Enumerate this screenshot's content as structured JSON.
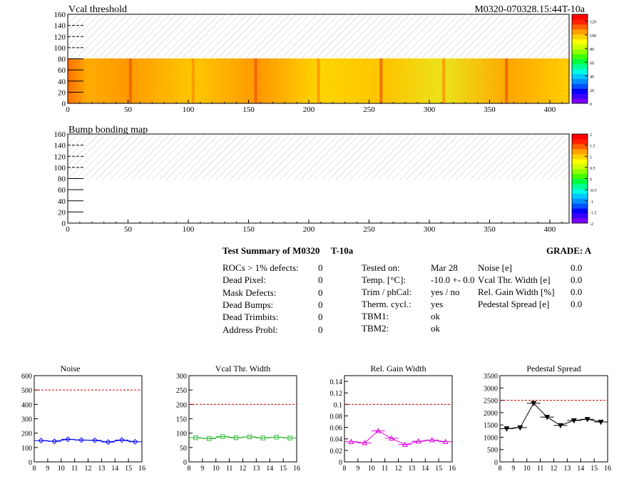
{
  "maps": [
    {
      "title": "Vcal threshold",
      "right_title": "M0320-070328.15:44T-10a",
      "x_ticks": [
        "0",
        "50",
        "100",
        "150",
        "200",
        "250",
        "300",
        "350",
        "400"
      ],
      "y_ticks": [
        "0",
        "20",
        "40",
        "60",
        "80",
        "100",
        "120",
        "140",
        "160"
      ],
      "palette_ticks": [
        "0",
        "20",
        "40",
        "60",
        "80",
        "100",
        "120"
      ]
    },
    {
      "title": "Bump bonding map",
      "x_ticks": [
        "0",
        "50",
        "100",
        "150",
        "200",
        "250",
        "300",
        "350",
        "400"
      ],
      "y_ticks": [
        "0",
        "20",
        "40",
        "60",
        "80",
        "100",
        "120",
        "140",
        "160"
      ],
      "palette_ticks": [
        "-2",
        "-1.5",
        "-1",
        "-0.5",
        "0",
        "0.5",
        "1",
        "1.5",
        "2"
      ]
    }
  ],
  "summary": {
    "title": "Test Summary of M0320",
    "temp_tag": "T-10a",
    "grade": "GRADE:  A",
    "defects": [
      {
        "label": "ROCs > 1% defects:",
        "value": "0"
      },
      {
        "label": "Dead Pixel:",
        "value": "0"
      },
      {
        "label": "Mask Defects:",
        "value": "0"
      },
      {
        "label": "Dead Bumps:",
        "value": "0"
      },
      {
        "label": "Dead Trimbits:",
        "value": "0"
      },
      {
        "label": "Address Probl:",
        "value": "0"
      }
    ],
    "conditions": [
      {
        "label": "Tested on:",
        "value": "Mar 28"
      },
      {
        "label": "Temp. [°C]:",
        "value": "-10.0 +- 0.0"
      },
      {
        "label": "Trim / phCal:",
        "value": "yes / no"
      },
      {
        "label": "Therm. cycl.:",
        "value": "yes"
      },
      {
        "label": "TBM1:",
        "value": "ok"
      },
      {
        "label": "TBM2:",
        "value": "ok"
      }
    ],
    "widths": [
      {
        "label": "Noise [e]",
        "value": "0.0"
      },
      {
        "label": "Vcal Thr. Width [e]",
        "value": "0.0"
      },
      {
        "label": "Rel. Gain Width [%]",
        "value": "0.0"
      },
      {
        "label": "Pedestal Spread [e]",
        "value": "0.0"
      }
    ]
  },
  "chart_data": [
    {
      "type": "line",
      "title": "Noise",
      "x": [
        8.5,
        9.5,
        10.5,
        11.5,
        12.5,
        13.5,
        14.5,
        15.5
      ],
      "values": [
        148,
        143,
        157,
        152,
        150,
        138,
        152,
        140
      ],
      "xlim": [
        8,
        16
      ],
      "ylim": [
        0,
        600
      ],
      "x_ticks": [
        "8",
        "9",
        "10",
        "11",
        "12",
        "13",
        "14",
        "15",
        "16"
      ],
      "y_ticks": [
        "0",
        "100",
        "200",
        "300",
        "400",
        "500",
        "600"
      ],
      "y_tick_values": [
        0,
        100,
        200,
        300,
        400,
        500,
        600
      ],
      "threshold": 500,
      "marker": "diamond",
      "color": "#0000ff",
      "threshold_color": "#cc0000"
    },
    {
      "type": "line",
      "title": "Vcal Thr. Width",
      "x": [
        8.5,
        9.5,
        10.5,
        11.5,
        12.5,
        13.5,
        14.5,
        15.5
      ],
      "values": [
        84,
        81,
        88,
        84,
        87,
        83,
        86,
        83
      ],
      "xlim": [
        8,
        16
      ],
      "ylim": [
        0,
        300
      ],
      "x_ticks": [
        "8",
        "9",
        "10",
        "11",
        "12",
        "13",
        "14",
        "15",
        "16"
      ],
      "y_ticks": [
        "0",
        "50",
        "100",
        "150",
        "200",
        "250",
        "300"
      ],
      "y_tick_values": [
        0,
        50,
        100,
        150,
        200,
        250,
        300
      ],
      "threshold": 200,
      "marker": "square",
      "color": "#33bb33",
      "threshold_color": "#cc0000"
    },
    {
      "type": "line",
      "title": "Rel. Gain Width",
      "x": [
        8.5,
        9.5,
        10.5,
        11.5,
        12.5,
        13.5,
        14.5,
        15.5
      ],
      "values": [
        0.035,
        0.033,
        0.054,
        0.041,
        0.03,
        0.036,
        0.038,
        0.035
      ],
      "xlim": [
        8,
        16
      ],
      "ylim": [
        0,
        0.15
      ],
      "x_ticks": [
        "8",
        "9",
        "10",
        "11",
        "12",
        "13",
        "14",
        "15",
        "16"
      ],
      "y_ticks": [
        "0",
        "0.02",
        "0.04",
        "0.06",
        "0.08",
        "0.1",
        "0.12",
        "0.14"
      ],
      "y_tick_values": [
        0,
        0.02,
        0.04,
        0.06,
        0.08,
        0.1,
        0.12,
        0.14
      ],
      "threshold": 0.1,
      "marker": "triangle",
      "color": "#dd00dd",
      "threshold_color": "#cc0000"
    },
    {
      "type": "line",
      "title": "Pedestal Spread",
      "x": [
        8.5,
        9.5,
        10.5,
        11.5,
        12.5,
        13.5,
        14.5,
        15.5
      ],
      "values": [
        1350,
        1390,
        2380,
        1820,
        1480,
        1680,
        1730,
        1620
      ],
      "xlim": [
        8,
        16
      ],
      "ylim": [
        0,
        3500
      ],
      "x_ticks": [
        "8",
        "9",
        "10",
        "11",
        "12",
        "13",
        "14",
        "15",
        "16"
      ],
      "y_ticks": [
        "0",
        "500",
        "1000",
        "1500",
        "2000",
        "2500",
        "3000",
        "3500"
      ],
      "y_tick_values": [
        0,
        500,
        1000,
        1500,
        2000,
        2500,
        3000,
        3500
      ],
      "threshold": 2500,
      "marker": "triangle-down",
      "color": "#000000",
      "threshold_color": "#cc0000"
    }
  ]
}
